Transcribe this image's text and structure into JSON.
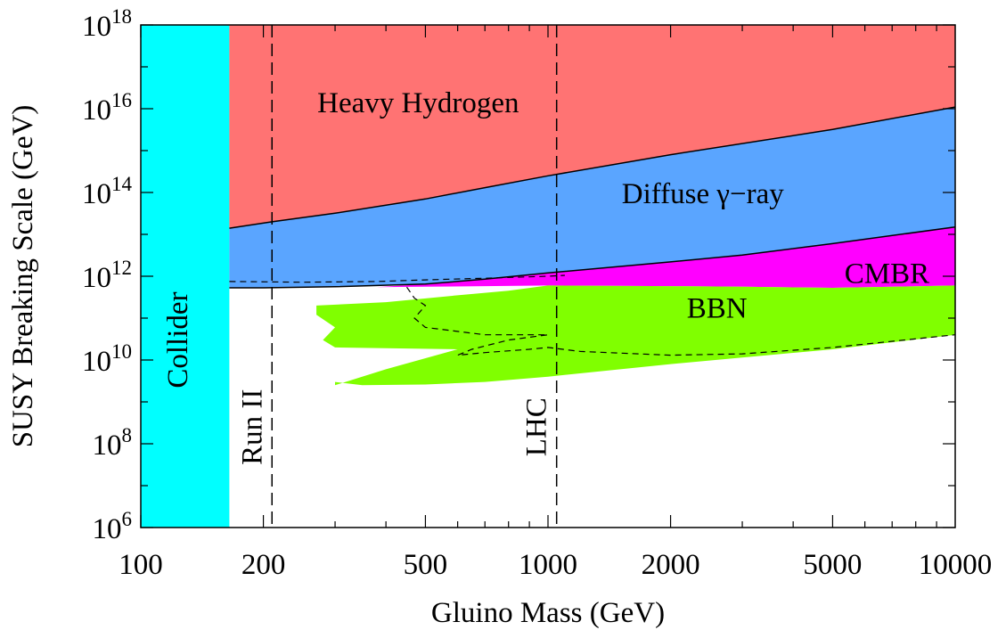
{
  "chart_data": {
    "type": "area",
    "xlabel": "Gluino Mass (GeV)",
    "ylabel": "SUSY Breaking Scale (GeV)",
    "x_scale": "log",
    "y_scale": "log",
    "xlim": [
      100,
      10000
    ],
    "ylim": [
      1000000.0,
      1e+18
    ],
    "x_ticks": [
      {
        "value": 100,
        "label": "100"
      },
      {
        "value": 200,
        "label": "200"
      },
      {
        "value": 500,
        "label": "500"
      },
      {
        "value": 1000,
        "label": "1000"
      },
      {
        "value": 2000,
        "label": "2000"
      },
      {
        "value": 5000,
        "label": "5000"
      },
      {
        "value": 10000,
        "label": "10000"
      }
    ],
    "y_ticks": [
      {
        "value": 1000000.0,
        "base": "10",
        "exp": "6"
      },
      {
        "value": 100000000.0,
        "base": "10",
        "exp": "8"
      },
      {
        "value": 10000000000.0,
        "base": "10",
        "exp": "10"
      },
      {
        "value": 1000000000000.0,
        "base": "10",
        "exp": "12"
      },
      {
        "value": 100000000000000.0,
        "base": "10",
        "exp": "14"
      },
      {
        "value": 1e+16,
        "base": "10",
        "exp": "16"
      },
      {
        "value": 1e+18,
        "base": "10",
        "exp": "18"
      }
    ],
    "regions": [
      {
        "name": "Collider",
        "color": "#00ffff",
        "label_rotated": true,
        "label_at": [
          125,
          30000000000.0
        ],
        "boundary": [
          [
            100,
            1000000.0
          ],
          [
            165,
            1000000.0
          ],
          [
            165,
            1e+18
          ],
          [
            100,
            1e+18
          ]
        ]
      },
      {
        "name": "Heavy Hydrogen",
        "color": "#ff7373",
        "label_at": [
          480,
          1.2e+16
        ],
        "boundary": [
          [
            165,
            14000000000000.0
          ],
          [
            210,
            20000000000000.0
          ],
          [
            300,
            32000000000000.0
          ],
          [
            500,
            70000000000000.0
          ],
          [
            700,
            130000000000000.0
          ],
          [
            1000,
            250000000000000.0
          ],
          [
            2000,
            800000000000000.0
          ],
          [
            5000,
            3200000000000000.0
          ],
          [
            10000,
            1.1e+16
          ],
          [
            10000,
            1e+18
          ],
          [
            165,
            1e+18
          ]
        ]
      },
      {
        "name": "Diffuse γ−ray",
        "color": "#5aa5ff",
        "label_at": [
          2400,
          80000000000000.0
        ],
        "boundary": [
          [
            165,
            14000000000000.0
          ],
          [
            210,
            20000000000000.0
          ],
          [
            300,
            32000000000000.0
          ],
          [
            500,
            70000000000000.0
          ],
          [
            700,
            130000000000000.0
          ],
          [
            1000,
            250000000000000.0
          ],
          [
            2000,
            800000000000000.0
          ],
          [
            5000,
            3200000000000000.0
          ],
          [
            10000,
            1.1e+16
          ],
          [
            10000,
            15000000000000.0
          ],
          [
            5000,
            6000000000000.0
          ],
          [
            3000,
            3200000000000.0
          ],
          [
            2000,
            2200000000000.0
          ],
          [
            1000,
            1200000000000.0
          ],
          [
            700,
            850000000000.0
          ],
          [
            500,
            650000000000.0
          ],
          [
            300,
            560000000000.0
          ],
          [
            200,
            530000000000.0
          ],
          [
            165,
            530000000000.0
          ]
        ]
      },
      {
        "name": "CMBR",
        "color": "#ff00ff",
        "label_at": [
          6800,
          1000000000000.0
        ],
        "boundary": [
          [
            380,
            550000000000.0
          ],
          [
            500,
            650000000000.0
          ],
          [
            700,
            850000000000.0
          ],
          [
            1000,
            1200000000000.0
          ],
          [
            2000,
            2200000000000.0
          ],
          [
            3000,
            3200000000000.0
          ],
          [
            5000,
            6000000000000.0
          ],
          [
            10000,
            15000000000000.0
          ],
          [
            10000,
            600000000000.0
          ],
          [
            5000,
            530000000000.0
          ],
          [
            3000,
            560000000000.0
          ],
          [
            2000,
            580000000000.0
          ],
          [
            1000,
            600000000000.0
          ],
          [
            700,
            580000000000.0
          ],
          [
            500,
            560000000000.0
          ],
          [
            380,
            550000000000.0
          ]
        ]
      },
      {
        "name": "BBN",
        "color": "#80ff00",
        "label_at": [
          2600,
          150000000000.0
        ],
        "boundary": [
          [
            1000,
            600000000000.0
          ],
          [
            2000,
            580000000000.0
          ],
          [
            3000,
            560000000000.0
          ],
          [
            5000,
            530000000000.0
          ],
          [
            10000,
            600000000000.0
          ],
          [
            10000,
            40000000000.0
          ],
          [
            5000,
            18000000000.0
          ],
          [
            2000,
            8000000000.0
          ],
          [
            1000,
            4000000000.0
          ],
          [
            700,
            3000000000.0
          ],
          [
            500,
            2600000000.0
          ],
          [
            350,
            2500000000.0
          ],
          [
            300,
            3000000000.0
          ],
          [
            300,
            2500000000.0
          ],
          [
            400,
            6000000000.0
          ],
          [
            600,
            18000000000.0
          ],
          [
            300,
            20000000000.0
          ],
          [
            280,
            30000000000.0
          ],
          [
            300,
            60000000000.0
          ],
          [
            270,
            120000000000.0
          ],
          [
            270,
            200000000000.0
          ],
          [
            400,
            240000000000.0
          ],
          [
            600,
            350000000000.0
          ],
          [
            800,
            450000000000.0
          ]
        ]
      }
    ],
    "boundary_lines": [
      {
        "style": "solid",
        "points": [
          [
            165,
            14000000000000.0
          ],
          [
            210,
            20000000000000.0
          ],
          [
            300,
            32000000000000.0
          ],
          [
            500,
            70000000000000.0
          ],
          [
            700,
            130000000000000.0
          ],
          [
            1000,
            250000000000000.0
          ],
          [
            2000,
            800000000000000.0
          ],
          [
            5000,
            3200000000000000.0
          ],
          [
            10000,
            1.1e+16
          ]
        ]
      },
      {
        "style": "solid",
        "points": [
          [
            165,
            530000000000.0
          ],
          [
            200,
            530000000000.0
          ],
          [
            300,
            560000000000.0
          ],
          [
            500,
            650000000000.0
          ],
          [
            700,
            850000000000.0
          ],
          [
            1000,
            1200000000000.0
          ],
          [
            2000,
            2200000000000.0
          ],
          [
            3000,
            3200000000000.0
          ],
          [
            5000,
            6000000000000.0
          ],
          [
            10000,
            15000000000000.0
          ]
        ]
      },
      {
        "style": "dashed",
        "points": [
          [
            165,
            750000000000.0
          ],
          [
            250,
            720000000000.0
          ],
          [
            380,
            750000000000.0
          ],
          [
            500,
            820000000000.0
          ],
          [
            700,
            900000000000.0
          ],
          [
            1000,
            1000000000000.0
          ],
          [
            1100,
            1050000000000.0
          ]
        ]
      },
      {
        "style": "dashed",
        "points": [
          [
            450,
            550000000000.0
          ],
          [
            470,
            300000000000.0
          ],
          [
            500,
            200000000000.0
          ],
          [
            470,
            100000000000.0
          ],
          [
            500,
            60000000000.0
          ],
          [
            700,
            40000000000.0
          ],
          [
            1000,
            40000000000.0
          ],
          [
            800,
            30000000000.0
          ],
          [
            650,
            18000000000.0
          ],
          [
            600,
            13000000000.0
          ],
          [
            700,
            15000000000.0
          ],
          [
            900,
            18000000000.0
          ],
          [
            1000,
            20000000000.0
          ],
          [
            1200,
            16000000000.0
          ],
          [
            2000,
            13000000000.0
          ],
          [
            3000,
            14000000000.0
          ],
          [
            5000,
            20000000000.0
          ],
          [
            10000,
            40000000000.0
          ]
        ]
      }
    ],
    "reference_lines": [
      {
        "x": 210,
        "label": "Run II",
        "label_at_y": 250000000.0
      },
      {
        "x": 1050,
        "label": "LHC",
        "label_at_y": 250000000.0
      }
    ]
  }
}
